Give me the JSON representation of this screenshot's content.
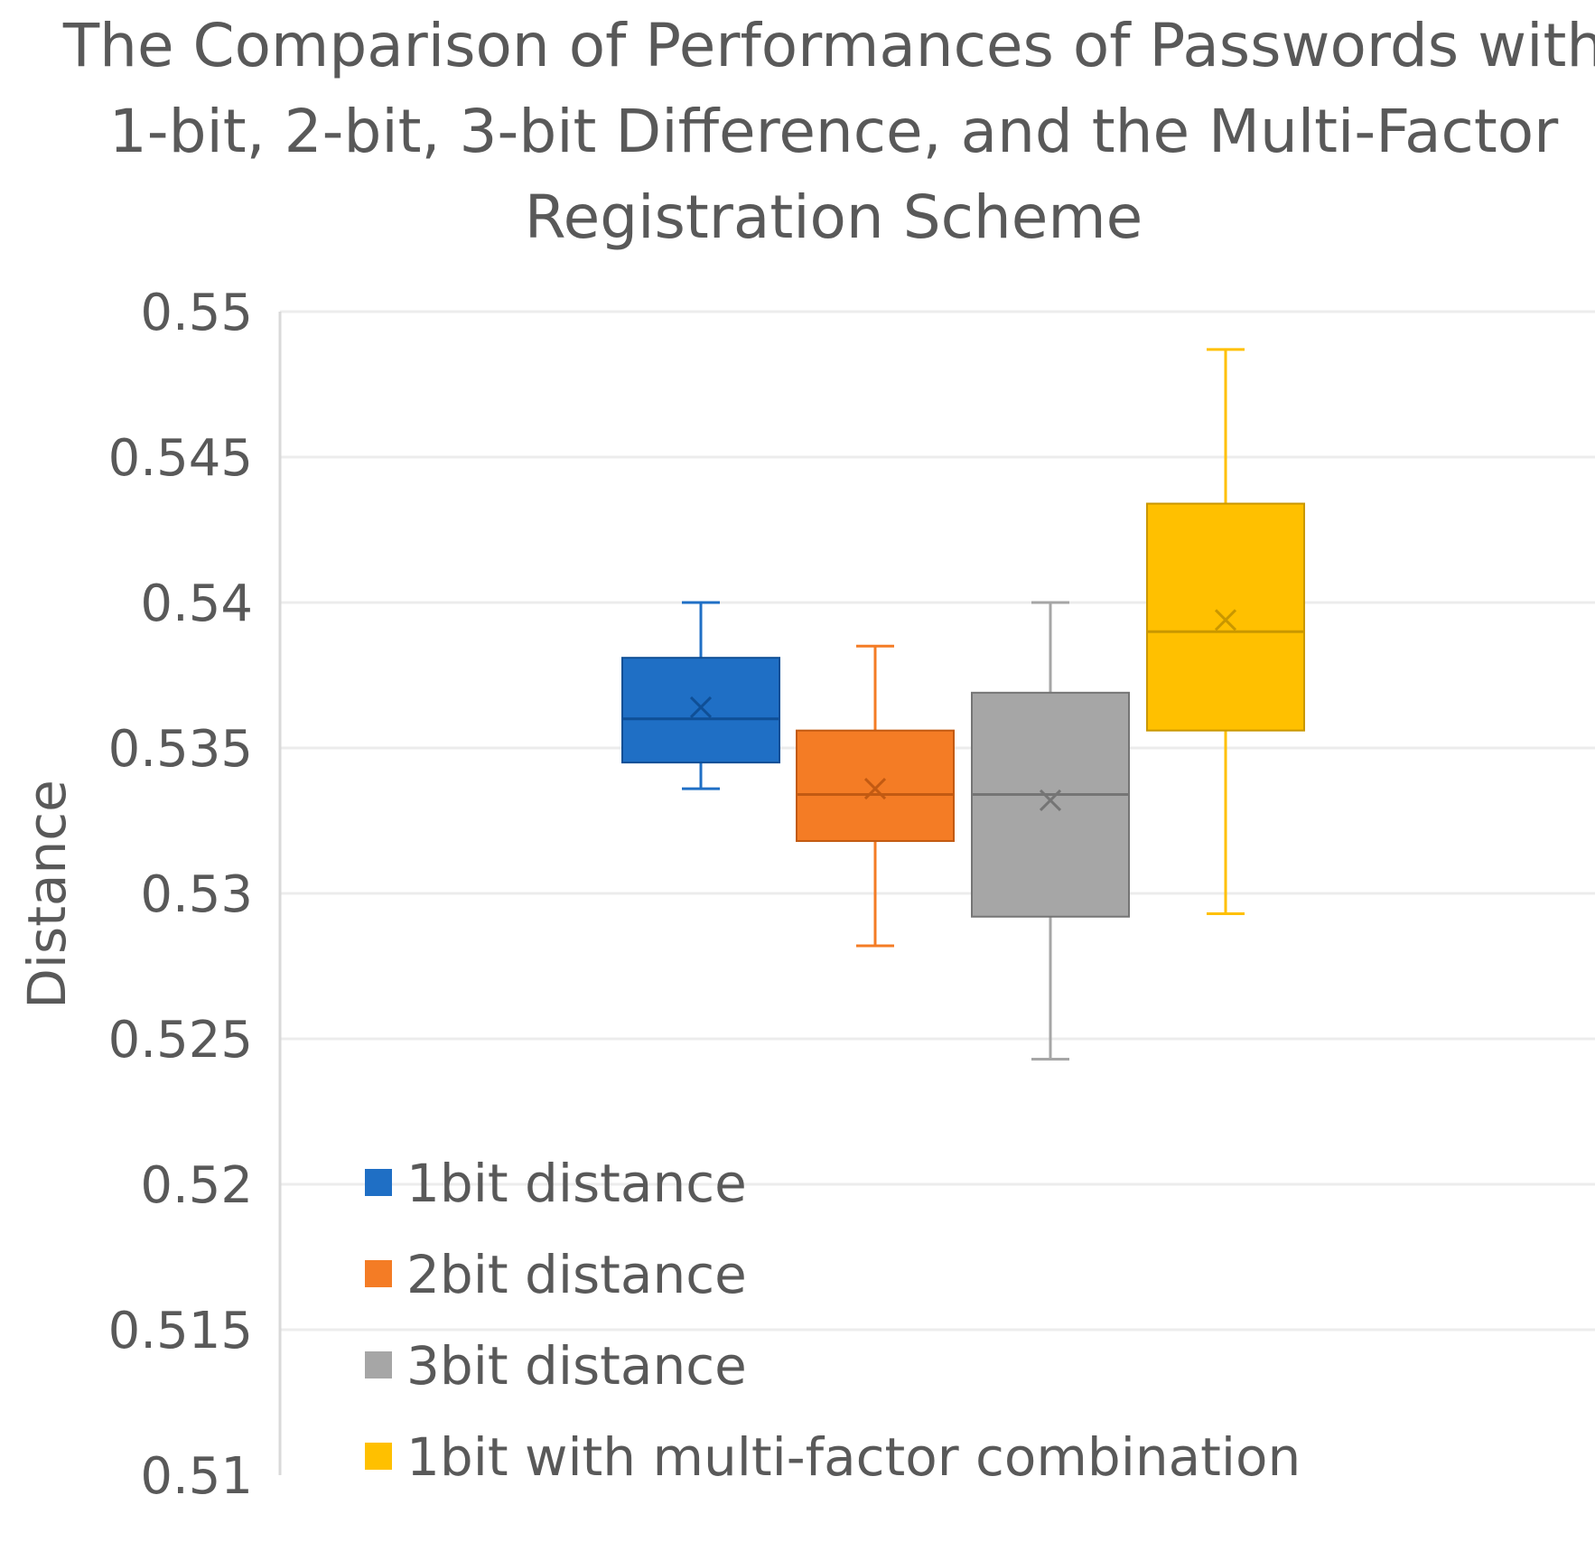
{
  "chart_data": {
    "type": "boxplot",
    "title_lines": [
      "The Comparison of Performances of Passwords with",
      "1-bit, 2-bit, 3-bit Difference, and the Multi-Factor",
      "Registration Scheme"
    ],
    "ylabel": "Distance",
    "xlabel": "",
    "ylim": [
      0.51,
      0.55
    ],
    "yticks": [
      {
        "value": 0.51,
        "label": "0.51"
      },
      {
        "value": 0.515,
        "label": "0.515"
      },
      {
        "value": 0.52,
        "label": "0.52"
      },
      {
        "value": 0.525,
        "label": "0.525"
      },
      {
        "value": 0.53,
        "label": "0.53"
      },
      {
        "value": 0.535,
        "label": "0.535"
      },
      {
        "value": 0.54,
        "label": "0.54"
      },
      {
        "value": 0.545,
        "label": "0.545"
      },
      {
        "value": 0.55,
        "label": "0.55"
      }
    ],
    "grid": true,
    "legend_position": "bottom-left-inside",
    "series": [
      {
        "name": "1bit distance",
        "color": "#1f6fc5",
        "min": 0.5336,
        "q1": 0.5345,
        "median": 0.536,
        "q3": 0.5381,
        "max": 0.54,
        "mean": 0.5364
      },
      {
        "name": "2bit distance",
        "color": "#f47c25",
        "min": 0.5282,
        "q1": 0.5318,
        "median": 0.5334,
        "q3": 0.5356,
        "max": 0.5385,
        "mean": 0.5336
      },
      {
        "name": "3bit distance",
        "color": "#a6a6a6",
        "min": 0.5243,
        "q1": 0.5292,
        "median": 0.5334,
        "q3": 0.5369,
        "max": 0.54,
        "mean": 0.5332
      },
      {
        "name": "1bit with multi-factor combination",
        "color": "#ffc000",
        "min": 0.5293,
        "q1": 0.5356,
        "median": 0.539,
        "q3": 0.5434,
        "max": 0.5487,
        "mean": 0.5394
      }
    ]
  }
}
